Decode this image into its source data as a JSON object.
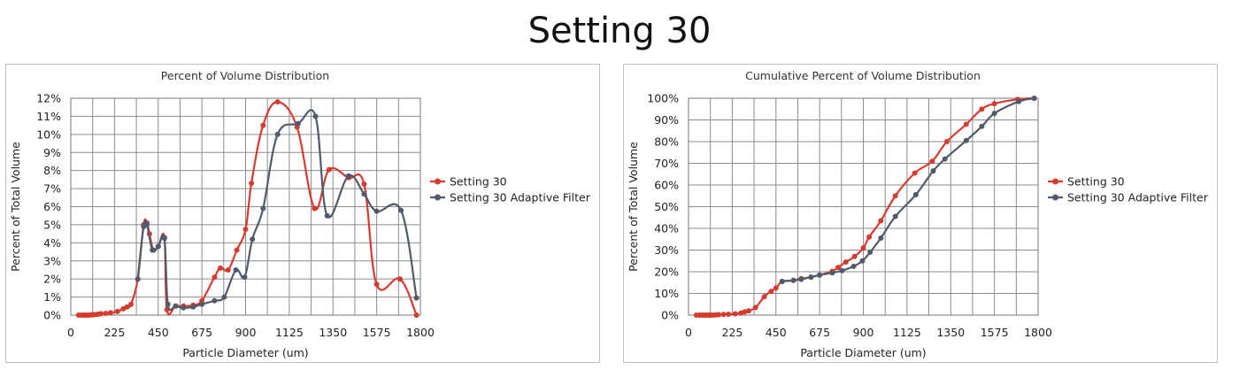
{
  "page_title": "Setting 30",
  "colors": {
    "series_1": "#d63b2f",
    "series_2": "#4f5b6b"
  },
  "chart_data": [
    {
      "type": "line",
      "title": "Percent of Volume Distribution",
      "xlabel": "Particle Diameter (um)",
      "ylabel": "Percent of Total Volume",
      "xlim": [
        0,
        1800
      ],
      "ylim": [
        0,
        12
      ],
      "x_ticks": [
        "0",
        "225",
        "450",
        "675",
        "900",
        "1125",
        "1350",
        "1575",
        "1800"
      ],
      "y_ticks": [
        "0%",
        "1%",
        "2%",
        "3%",
        "4%",
        "5%",
        "6%",
        "7%",
        "8%",
        "9%",
        "10%",
        "11%",
        "12%"
      ],
      "grid": true,
      "legend_position": "right",
      "series": [
        {
          "name": "Setting 30",
          "x": [
            40,
            55,
            65,
            75,
            85,
            95,
            105,
            115,
            125,
            140,
            155,
            180,
            205,
            240,
            270,
            290,
            310,
            345,
            375,
            392,
            405,
            425,
            450,
            482,
            495,
            540,
            580,
            630,
            675,
            740,
            770,
            810,
            855,
            900,
            930,
            990,
            1065,
            1165,
            1255,
            1330,
            1430,
            1510,
            1575,
            1695,
            1780
          ],
          "y": [
            0,
            0,
            0,
            0,
            0,
            0,
            0.02,
            0.02,
            0.03,
            0.05,
            0.08,
            0.1,
            0.13,
            0.2,
            0.35,
            0.45,
            0.6,
            2.0,
            5.0,
            5.1,
            4.5,
            3.6,
            3.8,
            4.3,
            0.3,
            0.5,
            0.5,
            0.55,
            0.8,
            2.1,
            2.6,
            2.5,
            3.6,
            4.75,
            7.3,
            10.5,
            11.8,
            10.4,
            5.9,
            8.05,
            7.6,
            7.25,
            1.7,
            2.0,
            0.0
          ]
        },
        {
          "name": "Setting 30 Adaptive Filter",
          "x": [
            345,
            375,
            392,
            420,
            450,
            482,
            500,
            540,
            580,
            630,
            675,
            740,
            790,
            850,
            895,
            935,
            990,
            1065,
            1170,
            1260,
            1320,
            1430,
            1510,
            1575,
            1700,
            1780
          ],
          "y": [
            2.0,
            4.9,
            5.0,
            3.6,
            3.8,
            4.25,
            0.6,
            0.5,
            0.4,
            0.45,
            0.6,
            0.8,
            1.0,
            2.5,
            2.1,
            4.2,
            5.9,
            10.0,
            10.6,
            11.0,
            5.5,
            7.7,
            6.7,
            5.75,
            5.8,
            0.95
          ]
        }
      ]
    },
    {
      "type": "line",
      "title": "Cumulative Percent of Volume Distribution",
      "xlabel": "Particle Diameter (um)",
      "ylabel": "Percent of Total Volume",
      "xlim": [
        0,
        1800
      ],
      "ylim": [
        0,
        100
      ],
      "x_ticks": [
        "0",
        "225",
        "450",
        "675",
        "900",
        "1125",
        "1350",
        "1575",
        "1800"
      ],
      "y_ticks": [
        "0%",
        "10%",
        "20%",
        "30%",
        "40%",
        "50%",
        "60%",
        "70%",
        "80%",
        "90%",
        "100%"
      ],
      "grid": true,
      "legend_position": "right",
      "series": [
        {
          "name": "Setting 30",
          "x": [
            40,
            55,
            65,
            75,
            85,
            95,
            105,
            115,
            125,
            140,
            155,
            180,
            205,
            240,
            270,
            290,
            310,
            345,
            390,
            425,
            450,
            482,
            540,
            580,
            630,
            675,
            740,
            770,
            810,
            855,
            900,
            930,
            990,
            1065,
            1165,
            1255,
            1330,
            1430,
            1510,
            1575,
            1695,
            1780
          ],
          "y": [
            0,
            0,
            0,
            0,
            0,
            0,
            0,
            0,
            0,
            0.1,
            0.2,
            0.3,
            0.4,
            0.6,
            1.0,
            1.5,
            2.0,
            3.5,
            8.5,
            11.0,
            12.5,
            15.5,
            16.0,
            16.8,
            17.5,
            18.5,
            20.2,
            22.0,
            24.5,
            27.0,
            31.0,
            36.0,
            43.5,
            55.0,
            65.5,
            71.0,
            80.0,
            88.0,
            95.0,
            97.5,
            99.5,
            100.0
          ]
        },
        {
          "name": "Setting 30 Adaptive Filter",
          "x": [
            482,
            540,
            580,
            630,
            675,
            740,
            790,
            850,
            895,
            935,
            990,
            1065,
            1170,
            1260,
            1320,
            1430,
            1510,
            1575,
            1700,
            1780
          ],
          "y": [
            15.5,
            16.0,
            16.5,
            17.5,
            18.5,
            19.5,
            20.5,
            22.5,
            25.0,
            29.0,
            35.5,
            45.5,
            55.5,
            66.5,
            72.0,
            80.5,
            87.0,
            93.0,
            98.5,
            100.0
          ]
        }
      ]
    }
  ]
}
